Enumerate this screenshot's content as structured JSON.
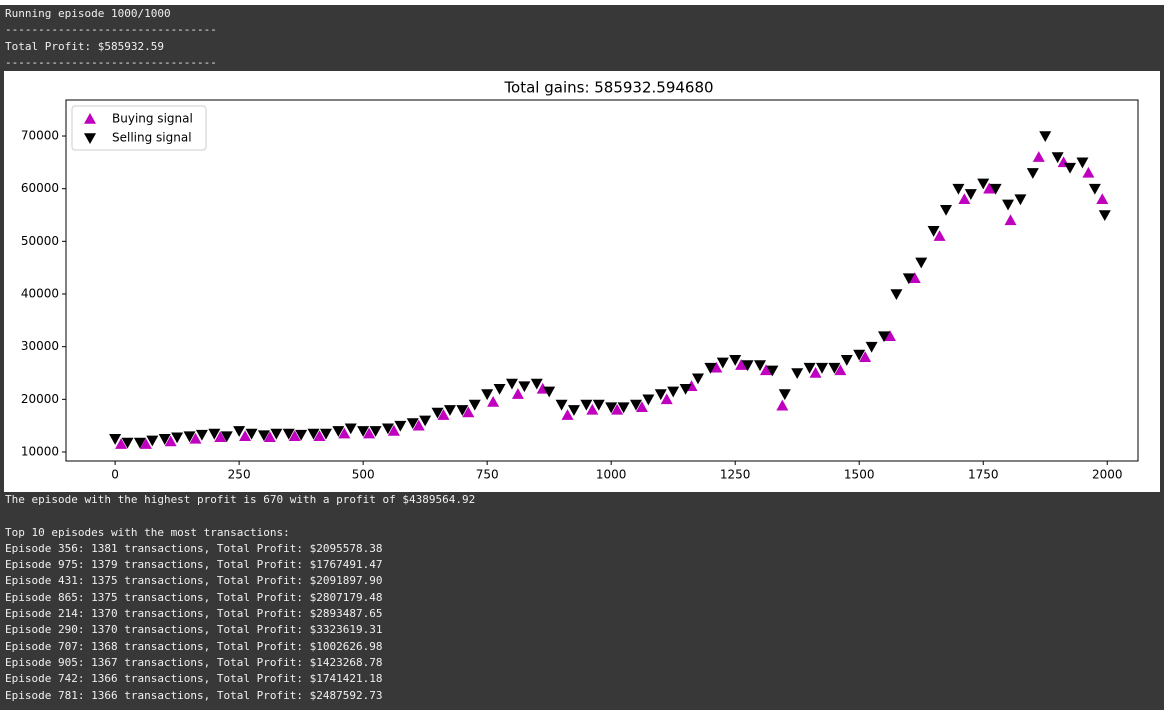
{
  "console_top": [
    "Running episode 1000/1000",
    "--------------------------------",
    "Total Profit: $585932.59",
    "--------------------------------"
  ],
  "console_bottom": [
    "The episode with the highest profit is 670 with a profit of $4389564.92"
  ],
  "console_list": {
    "title": "Top 10 episodes with the most transactions:",
    "lines": [
      "Episode 356: 1381 transactions, Total Profit: $2095578.38",
      "Episode 975: 1379 transactions, Total Profit: $1767491.47",
      "Episode 431: 1375 transactions, Total Profit: $2091897.90",
      "Episode 865: 1375 transactions, Total Profit: $2807179.48",
      "Episode 214: 1370 transactions, Total Profit: $2893487.65",
      "Episode 290: 1370 transactions, Total Profit: $3323619.31",
      "Episode 707: 1368 transactions, Total Profit: $1002626.98",
      "Episode 905: 1367 transactions, Total Profit: $1423268.78",
      "Episode 742: 1366 transactions, Total Profit: $1741421.18",
      "Episode 781: 1366 transactions, Total Profit: $2487592.73"
    ]
  },
  "chart_data": {
    "type": "scatter",
    "title": "Total gains: 585932.594680",
    "xlim": [
      -99,
      2062
    ],
    "ylim": [
      8290,
      76840
    ],
    "xticks": [
      0,
      250,
      500,
      750,
      1000,
      1250,
      1500,
      1750,
      2000
    ],
    "yticks": [
      10000,
      20000,
      30000,
      40000,
      50000,
      60000,
      70000
    ],
    "legend": "upper left",
    "series": [
      {
        "name": "Buying signal",
        "color": "#bf00bf",
        "marker": "^",
        "x": [
          12,
          62,
          112,
          162,
          212,
          262,
          312,
          362,
          412,
          462,
          512,
          562,
          612,
          662,
          712,
          762,
          812,
          862,
          912,
          962,
          1012,
          1062,
          1112,
          1162,
          1212,
          1262,
          1312,
          1345,
          1412,
          1462,
          1512,
          1562,
          1612,
          1662,
          1712,
          1762,
          1805,
          1862,
          1912,
          1962,
          1990
        ],
        "values": [
          11500,
          11500,
          12000,
          12500,
          12800,
          13000,
          12800,
          13000,
          13000,
          13500,
          13500,
          14000,
          15000,
          17000,
          17500,
          19500,
          21000,
          22000,
          17000,
          18000,
          18000,
          18500,
          20000,
          22500,
          26000,
          26500,
          25500,
          18800,
          25000,
          25500,
          28000,
          32000,
          43000,
          51000,
          58000,
          60000,
          54000,
          66000,
          65000,
          63000,
          58000
        ]
      },
      {
        "name": "Selling signal",
        "color": "#000000",
        "marker": "v",
        "x": [
          0,
          25,
          50,
          75,
          100,
          125,
          150,
          175,
          200,
          225,
          250,
          275,
          300,
          325,
          350,
          375,
          400,
          425,
          450,
          475,
          500,
          525,
          550,
          575,
          600,
          625,
          650,
          675,
          700,
          725,
          750,
          775,
          800,
          825,
          850,
          875,
          900,
          925,
          950,
          975,
          1000,
          1025,
          1050,
          1075,
          1100,
          1125,
          1150,
          1175,
          1200,
          1225,
          1250,
          1275,
          1300,
          1325,
          1350,
          1375,
          1400,
          1425,
          1450,
          1475,
          1500,
          1525,
          1550,
          1575,
          1600,
          1625,
          1650,
          1675,
          1700,
          1725,
          1750,
          1775,
          1800,
          1825,
          1850,
          1875,
          1900,
          1925,
          1950,
          1975,
          1995
        ],
        "values": [
          12500,
          11800,
          11800,
          12200,
          12500,
          12800,
          13000,
          13300,
          13500,
          13000,
          14000,
          13500,
          13200,
          13500,
          13500,
          13300,
          13500,
          13500,
          14000,
          14500,
          14000,
          14000,
          14500,
          15000,
          15500,
          16000,
          17500,
          18000,
          18000,
          19000,
          21000,
          22000,
          23000,
          22500,
          23000,
          21500,
          19000,
          18000,
          19000,
          19000,
          18500,
          18500,
          19000,
          20000,
          21000,
          21500,
          22000,
          24000,
          26000,
          27000,
          27500,
          26500,
          26500,
          25500,
          21000,
          25000,
          26000,
          26000,
          26000,
          27500,
          28500,
          30000,
          32000,
          40000,
          43000,
          46000,
          52000,
          56000,
          60000,
          59000,
          61000,
          60000,
          57000,
          58000,
          63000,
          70000,
          66000,
          64000,
          65000,
          60000,
          55000
        ]
      }
    ]
  }
}
